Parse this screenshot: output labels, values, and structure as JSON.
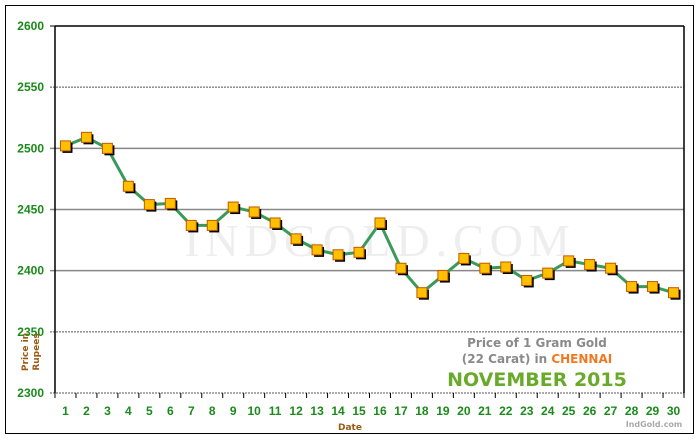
{
  "chart_data": {
    "type": "line",
    "title": "Price of 1 Gram Gold (22 Carat) in CHENNAI",
    "subtitle": "NOVEMBER 2015",
    "xlabel": "Date",
    "ylabel": "Price in Rupees",
    "x": [
      1,
      2,
      3,
      4,
      5,
      6,
      7,
      8,
      9,
      10,
      11,
      12,
      13,
      14,
      15,
      16,
      17,
      18,
      19,
      20,
      21,
      22,
      23,
      24,
      25,
      26,
      27,
      28,
      29,
      30
    ],
    "categories": [
      "1",
      "2",
      "3",
      "4",
      "5",
      "6",
      "7",
      "8",
      "9",
      "10",
      "11",
      "12",
      "13",
      "14",
      "15",
      "16",
      "17",
      "18",
      "19",
      "20",
      "21",
      "22",
      "23",
      "24",
      "25",
      "26",
      "27",
      "28",
      "29",
      "30"
    ],
    "series": [
      {
        "name": "Price of 1 Gram Gold (22 Carat)",
        "values": [
          2502,
          2509,
          2500,
          2469,
          2454,
          2455,
          2437,
          2437,
          2452,
          2448,
          2439,
          2426,
          2417,
          2413,
          2415,
          2439,
          2402,
          2382,
          2396,
          2410,
          2402,
          2403,
          2392,
          2398,
          2408,
          2405,
          2402,
          2387,
          2387,
          2382
        ]
      }
    ],
    "ylim": [
      2300,
      2600
    ],
    "yticks": [
      2300,
      2350,
      2400,
      2450,
      2500,
      2550,
      2600
    ],
    "grid": true,
    "legend": "none",
    "watermark": "IndGold.com",
    "annotations": [
      "Price of 1 Gram Gold",
      "(22 Carat) in",
      "CHENNAI",
      "NOVEMBER 2015",
      "IndGold.com"
    ]
  },
  "labels": {
    "ylabel_line1": "Price in",
    "ylabel_line2": "Rupees",
    "xlabel": "Date",
    "watermark": "INDGOLD.COM",
    "note_line1": "Price of 1 Gram Gold",
    "note_line2_prefix": "(22 Carat) in ",
    "note_city": "CHENNAI",
    "note_month": "NOVEMBER  2015",
    "credit": "IndGold.com"
  },
  "colors": {
    "line": "#3a9a5a",
    "marker_fill": "#ffc000",
    "marker_border": "#c05a00",
    "tick_text": "#1a8a1a",
    "axis_title": "#9a5a10",
    "city": "#f07820",
    "month": "#6aaa2a"
  }
}
